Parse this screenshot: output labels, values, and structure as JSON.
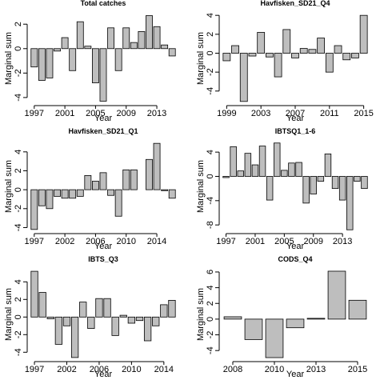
{
  "chart_data": [
    {
      "type": "bar",
      "title": "Total catches",
      "xlabel": "Year",
      "ylabel": "Marginal sum",
      "color": "#bebebe",
      "categories": [
        "1997",
        null,
        null,
        null,
        "2001",
        null,
        null,
        null,
        "2005",
        null,
        null,
        null,
        "2009",
        null,
        null,
        null,
        "2013",
        null,
        null
      ],
      "values": [
        -1.5,
        -2.6,
        -2.4,
        -0.2,
        0.9,
        -1.8,
        2.2,
        0.2,
        -2.8,
        -4.3,
        1.7,
        -1.8,
        1.7,
        0.5,
        1.4,
        2.7,
        1.8,
        0.3,
        -0.6
      ],
      "ylim": [
        -4.4,
        2.8
      ],
      "yticks": [
        -4,
        -2,
        0,
        2
      ]
    },
    {
      "type": "bar",
      "title": "Havfisken_SD21_Q4",
      "xlabel": "Year",
      "ylabel": "Marginal sum",
      "color": "#bebebe",
      "categories": [
        "1999",
        null,
        null,
        null,
        "2003",
        null,
        null,
        null,
        "2007",
        null,
        null,
        null,
        "2011",
        null,
        null,
        null,
        "2015"
      ],
      "values": [
        -0.8,
        0.8,
        -5.1,
        -0.3,
        2.2,
        -0.4,
        -2.5,
        2.5,
        -0.5,
        0.5,
        0.4,
        1.6,
        -2.0,
        0.8,
        -0.7,
        -0.5,
        4.0
      ],
      "ylim": [
        -5.2,
        4.1
      ],
      "yticks": [
        -4,
        -2,
        0,
        2,
        4
      ]
    },
    {
      "type": "bar",
      "title": "Havfisken_SD21_Q1",
      "xlabel": "Year",
      "ylabel": "Marginal sum",
      "color": "#bebebe",
      "categories": [
        "1997",
        null,
        null,
        null,
        "2002",
        null,
        null,
        null,
        "2006",
        null,
        null,
        null,
        "2010",
        null,
        null,
        null,
        "2014",
        null,
        null
      ],
      "values": [
        -4.2,
        -1.7,
        -2.0,
        -0.7,
        -0.9,
        -0.9,
        -0.7,
        1.5,
        0.9,
        1.8,
        -0.6,
        -2.8,
        2.1,
        2.1,
        0.0,
        3.2,
        4.9,
        -0.1,
        -0.9
      ],
      "ylim": [
        -4.3,
        5.0
      ],
      "yticks": [
        -4,
        -2,
        0,
        2,
        4
      ]
    },
    {
      "type": "bar",
      "title": "IBTSQ1_1-6",
      "xlabel": "Year",
      "ylabel": "Marginal sum",
      "color": "#bebebe",
      "categories": [
        "1997",
        null,
        null,
        null,
        "2001",
        null,
        null,
        null,
        "2005",
        null,
        null,
        null,
        "2009",
        null,
        null,
        null,
        "2013",
        null,
        null,
        null
      ],
      "values": [
        -0.2,
        4.9,
        0.9,
        3.8,
        1.9,
        5.0,
        -3.9,
        5.5,
        1.0,
        2.2,
        2.3,
        -4.4,
        -2.9,
        -0.8,
        3.7,
        -2.0,
        -3.9,
        -8.8,
        -0.8,
        -2.0
      ],
      "ylim": [
        -8.9,
        5.6
      ],
      "yticks": [
        -8,
        -4,
        0,
        4
      ]
    },
    {
      "type": "bar",
      "title": "IBTS_Q3",
      "xlabel": "Year",
      "ylabel": "Marginal sum",
      "color": "#bebebe",
      "categories": [
        "1997",
        null,
        null,
        null,
        "2002",
        null,
        null,
        null,
        "2006",
        null,
        null,
        null,
        "2010",
        null,
        null,
        null,
        "2014",
        null
      ],
      "values": [
        5.2,
        2.8,
        -0.2,
        -3.1,
        -1.0,
        -4.6,
        1.7,
        -1.3,
        2.1,
        2.1,
        -2.1,
        0.2,
        -0.7,
        -0.4,
        -2.7,
        -1.0,
        1.4,
        1.9
      ],
      "ylim": [
        -4.7,
        5.3
      ],
      "yticks": [
        -4,
        -2,
        0,
        2,
        4
      ]
    },
    {
      "type": "bar",
      "title": "CODS_Q4",
      "xlabel": "Year",
      "ylabel": "Marginal sum",
      "color": "#bebebe",
      "categories": [
        "2008",
        null,
        "2010",
        null,
        "2013",
        null,
        "2015"
      ],
      "values": [
        0.3,
        -2.6,
        -4.9,
        -1.1,
        0.1,
        6.1,
        2.4
      ],
      "ylim": [
        -5.0,
        6.2
      ],
      "yticks": [
        -4,
        -2,
        0,
        2,
        4,
        6
      ]
    }
  ]
}
